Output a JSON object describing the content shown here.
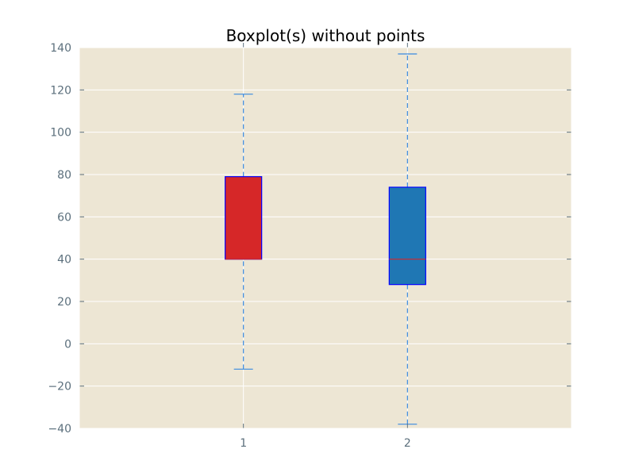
{
  "chart_data": {
    "type": "boxplot",
    "title": "Boxplot(s) without points",
    "xlabel": "",
    "ylabel": "",
    "ylim": [
      -40,
      140
    ],
    "yticks": [
      -40,
      -20,
      0,
      20,
      40,
      60,
      80,
      100,
      120,
      140
    ],
    "ytick_labels": [
      "−40",
      "−20",
      "0",
      "20",
      "40",
      "60",
      "80",
      "100",
      "120",
      "140"
    ],
    "categories": [
      "1",
      "2"
    ],
    "grid": true,
    "legend": "none",
    "background_color": "#ede6d4",
    "grid_color": "#ffffff",
    "whisker_color": "#3a8ae0",
    "box_edge_color": "#0000ff",
    "median_color": "#d62728",
    "boxes": [
      {
        "category": "1",
        "whisker_low": -12,
        "q1": 40,
        "median": 40,
        "q3": 79,
        "whisker_high": 118,
        "fill": "#d62728"
      },
      {
        "category": "2",
        "whisker_low": -38,
        "q1": 28,
        "median": 40,
        "q3": 74,
        "whisker_high": 137,
        "fill": "#1f77b4"
      }
    ],
    "show_points": false
  }
}
